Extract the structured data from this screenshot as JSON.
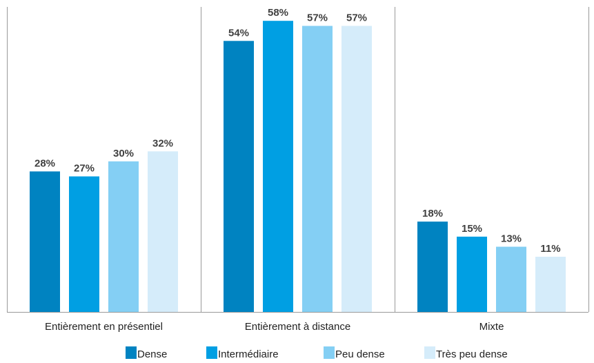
{
  "chart_data": {
    "type": "bar",
    "categories": [
      "Entièrement en présentiel",
      "Entièrement à distance",
      "Mixte"
    ],
    "series": [
      {
        "name": "Dense",
        "color": "#0083C1",
        "values": [
          28,
          54,
          18
        ],
        "labels": [
          "28%",
          "54%",
          "18%"
        ]
      },
      {
        "name": "Intermédiaire",
        "color": "#009FE3",
        "values": [
          27,
          58,
          15
        ],
        "labels": [
          "27%",
          "58%",
          "15%"
        ]
      },
      {
        "name": "Peu dense",
        "color": "#84CFF4",
        "values": [
          30,
          57,
          13
        ],
        "labels": [
          "30%",
          "57%",
          "13%"
        ]
      },
      {
        "name": "Très peu dense",
        "color": "#D5ECFA",
        "values": [
          32,
          57,
          11
        ],
        "labels": [
          "32%",
          "57%",
          "11%"
        ]
      }
    ],
    "ylim": [
      0,
      63
    ],
    "grid": false,
    "legend_position": "bottom"
  }
}
